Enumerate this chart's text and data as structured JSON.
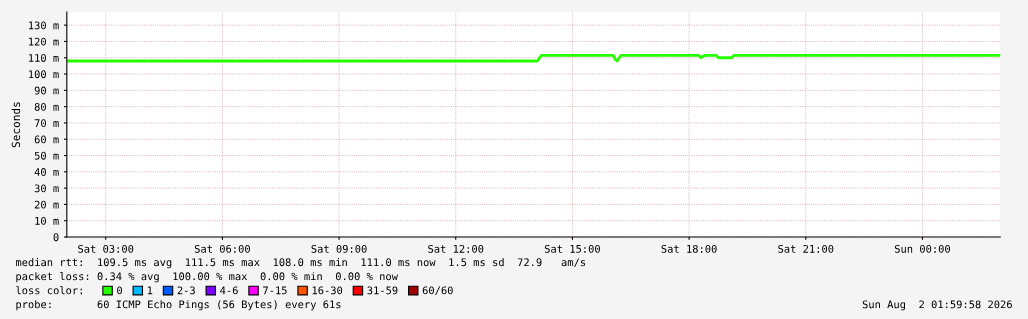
{
  "chart_data": {
    "type": "line",
    "ylabel": "Seconds",
    "x": [
      "2026-08-01T02:00",
      "2026-08-01T14:06",
      "2026-08-01T14:12",
      "2026-08-01T16:03",
      "2026-08-01T16:06",
      "2026-08-01T16:09",
      "2026-08-01T16:15",
      "2026-08-01T18:15",
      "2026-08-01T18:18",
      "2026-08-01T18:24",
      "2026-08-01T18:42",
      "2026-08-01T18:45",
      "2026-08-01T19:06",
      "2026-08-01T19:09",
      "2026-08-02T02:00"
    ],
    "series": [
      {
        "name": "0",
        "color": "#26ff00",
        "values": [
          108,
          108,
          111.5,
          111.5,
          109,
          108,
          111.5,
          111.5,
          110,
          111.5,
          111.5,
          110,
          110,
          111.5,
          111.5
        ]
      },
      {
        "name": "1",
        "color": "#00b8ff",
        "values": [
          null,
          null,
          null,
          null,
          null,
          null,
          null,
          null,
          null,
          null,
          null,
          null,
          null,
          null,
          null
        ]
      },
      {
        "name": "2-3",
        "color": "#0059ff",
        "values": [
          null,
          null,
          null,
          null,
          null,
          null,
          null,
          null,
          null,
          null,
          null,
          null,
          null,
          null,
          null
        ]
      },
      {
        "name": "4-6",
        "color": "#7e00ff",
        "values": [
          null,
          null,
          null,
          null,
          null,
          null,
          null,
          null,
          null,
          null,
          null,
          null,
          null,
          null,
          null
        ]
      },
      {
        "name": "7-15",
        "color": "#ff00ff",
        "values": [
          null,
          null,
          null,
          null,
          null,
          null,
          null,
          null,
          null,
          null,
          null,
          null,
          null,
          null,
          null
        ]
      },
      {
        "name": "16-30",
        "color": "#ff5500",
        "values": [
          null,
          null,
          null,
          null,
          null,
          null,
          null,
          null,
          null,
          null,
          null,
          null,
          null,
          null,
          null
        ]
      },
      {
        "name": "31-59",
        "color": "#ff0000",
        "values": [
          null,
          null,
          null,
          null,
          null,
          null,
          null,
          null,
          null,
          null,
          null,
          null,
          null,
          null,
          null
        ]
      },
      {
        "name": "60/60",
        "color": "#a10000",
        "values": [
          null,
          null,
          null,
          null,
          null,
          null,
          null,
          null,
          null,
          null,
          null,
          null,
          null,
          null,
          null
        ]
      }
    ],
    "legend_title": "loss color:",
    "legend": "bottom",
    "xlim": [
      "2026-08-01T02:00",
      "2026-08-02T02:00"
    ],
    "xticks": [
      {
        "value": "2026-08-01T03:00",
        "label": "Sat 03:00"
      },
      {
        "value": "2026-08-01T06:00",
        "label": "Sat 06:00"
      },
      {
        "value": "2026-08-01T09:00",
        "label": "Sat 09:00"
      },
      {
        "value": "2026-08-01T12:00",
        "label": "Sat 12:00"
      },
      {
        "value": "2026-08-01T15:00",
        "label": "Sat 15:00"
      },
      {
        "value": "2026-08-01T18:00",
        "label": "Sat 18:00"
      },
      {
        "value": "2026-08-01T21:00",
        "label": "Sat 21:00"
      },
      {
        "value": "2026-08-02T00:00",
        "label": "Sun 00:00"
      }
    ],
    "ylim": [
      0,
      138
    ],
    "yticks": [
      0,
      {
        "value": 10,
        "label": "10 m"
      },
      {
        "value": 20,
        "label": "20 m"
      },
      {
        "value": 30,
        "label": "30 m"
      },
      {
        "value": 40,
        "label": "40 m"
      },
      {
        "value": 50,
        "label": "50 m"
      },
      {
        "value": 60,
        "label": "60 m"
      },
      {
        "value": 70,
        "label": "70 m"
      },
      {
        "value": 80,
        "label": "80 m"
      },
      {
        "value": 90,
        "label": "90 m"
      },
      {
        "value": 100,
        "label": "100 m"
      },
      {
        "value": 110,
        "label": "110 m"
      },
      {
        "value": 120,
        "label": "120 m"
      },
      {
        "value": 130,
        "label": "130 m"
      }
    ],
    "grid": true,
    "line_style": "solid",
    "annotations": [
      "median rtt:  109.5 ms avg  111.5 ms max  108.0 ms min  111.0 ms now  1.5 ms sd  72.9   am/s",
      "packet loss: 0.34 % avg  100.00 % max  0.00 % min  0.00 % now",
      "probe:       60 ICMP Echo Pings (56 Bytes) every 61s",
      "Sun Aug  2 01:59:58 2026"
    ]
  }
}
